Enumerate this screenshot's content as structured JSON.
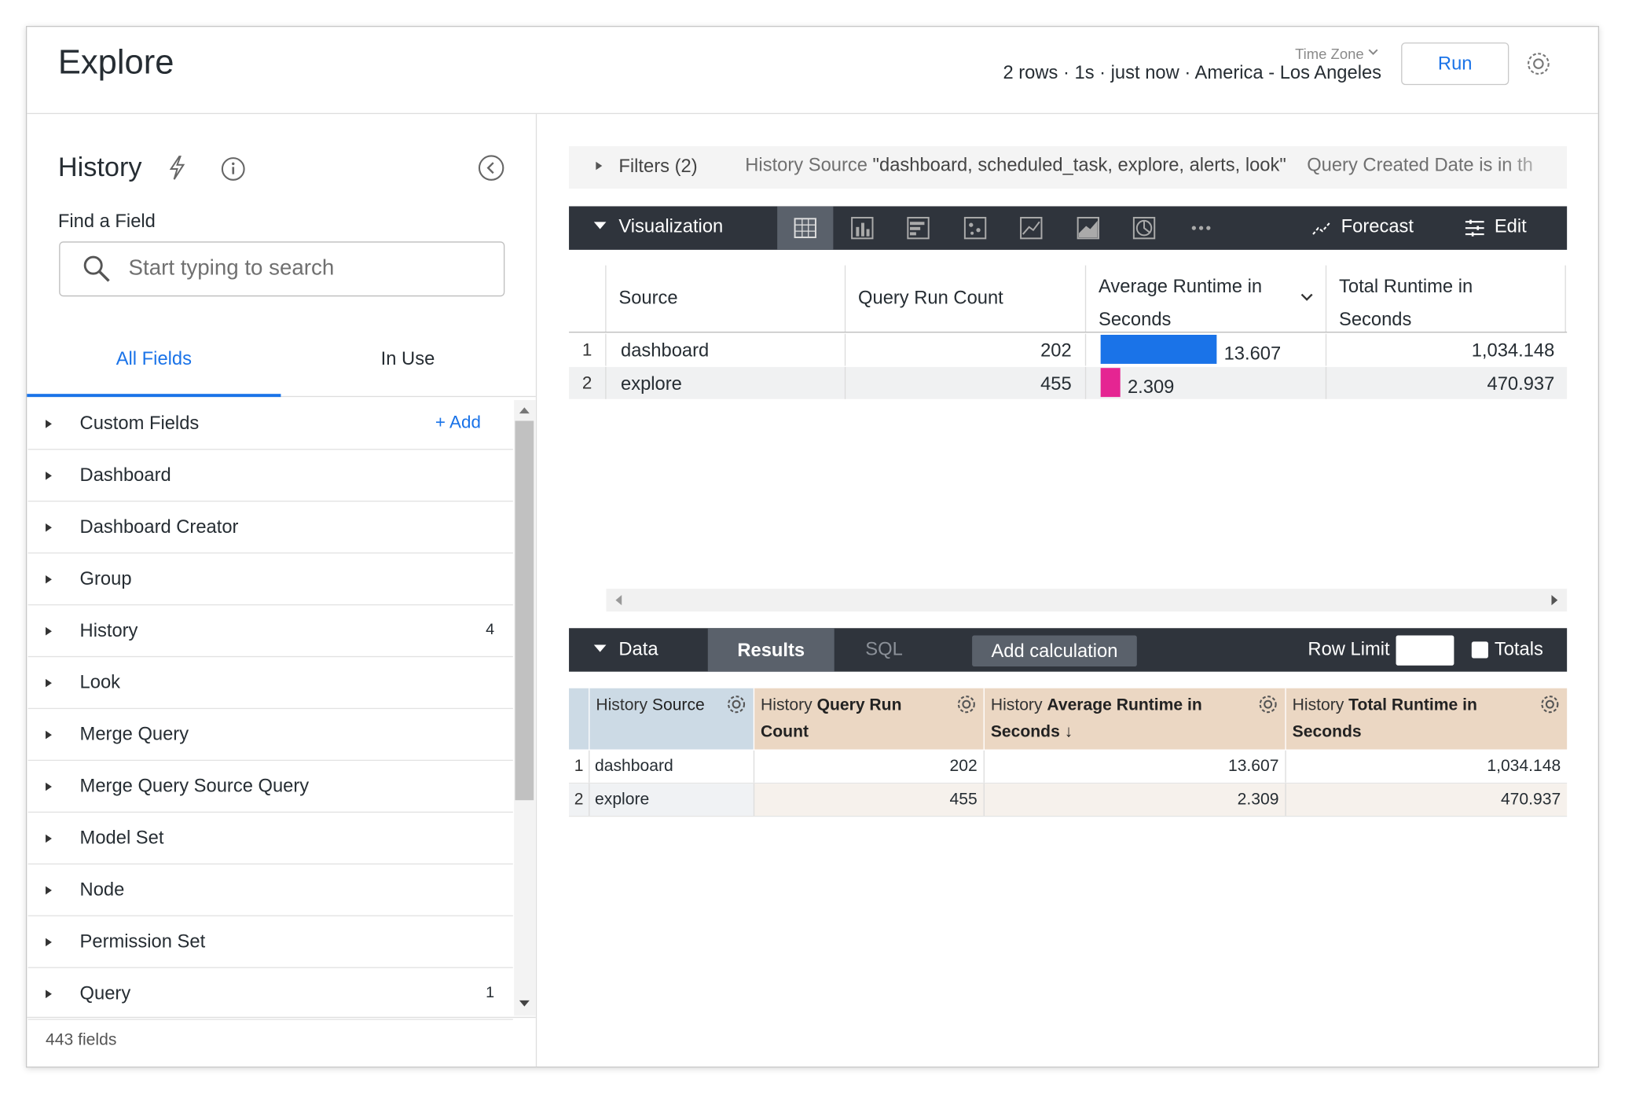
{
  "header": {
    "title": "Explore",
    "timezone_label": "Time Zone",
    "summary": "2 rows · 1s · just now · America - Los Angeles",
    "run_button": "Run"
  },
  "sidebar": {
    "title": "History",
    "find_label": "Find a Field",
    "search_placeholder": "Start typing to search",
    "tabs": [
      "All Fields",
      "In Use"
    ],
    "custom_fields": "Custom Fields",
    "add": "+ Add",
    "views": [
      {
        "name": "Dashboard"
      },
      {
        "name": "Dashboard Creator"
      },
      {
        "name": "Group"
      },
      {
        "name": "History",
        "count": 4
      },
      {
        "name": "Look"
      },
      {
        "name": "Merge Query"
      },
      {
        "name": "Merge Query Source Query"
      },
      {
        "name": "Model Set"
      },
      {
        "name": "Node"
      },
      {
        "name": "Permission Set"
      },
      {
        "name": "Query",
        "count": 1
      }
    ],
    "footer": "443 fields"
  },
  "filters": {
    "label": "Filters (2)",
    "field1": "History Source",
    "value1": "\"dashboard, scheduled_task, explore, alerts, look\"",
    "field2": "Query Created Date is in th"
  },
  "visualization": {
    "label": "Visualization",
    "forecast": "Forecast",
    "edit": "Edit",
    "columns": [
      "Source",
      "Query Run Count",
      "Average Runtime in Seconds",
      "Total Runtime in Seconds"
    ],
    "rows": [
      {
        "index": 1,
        "source": "dashboard",
        "count": 202,
        "avg": 13.607,
        "total": "1,034.148",
        "color": "#1a73e8"
      },
      {
        "index": 2,
        "source": "explore",
        "count": 455,
        "avg": 2.309,
        "total": "470.937",
        "color": "#e52592"
      }
    ]
  },
  "data_panel": {
    "label": "Data",
    "tabs": [
      "Results",
      "SQL"
    ],
    "add_calculation": "Add calculation",
    "row_limit": "Row Limit",
    "totals": "Totals",
    "columns": [
      {
        "view": "History",
        "field": "Source",
        "kind": "dimension"
      },
      {
        "view": "History",
        "field": "Query Run Count",
        "kind": "measure"
      },
      {
        "view": "History",
        "field": "Average Runtime in Seconds ↓",
        "kind": "measure"
      },
      {
        "view": "History",
        "field": "Total Runtime in Seconds",
        "kind": "measure"
      }
    ],
    "rows": [
      {
        "index": 1,
        "cells": [
          "dashboard",
          "202",
          "13.607",
          "1,034.148"
        ]
      },
      {
        "index": 2,
        "cells": [
          "explore",
          "455",
          "2.309",
          "470.937"
        ]
      }
    ]
  }
}
